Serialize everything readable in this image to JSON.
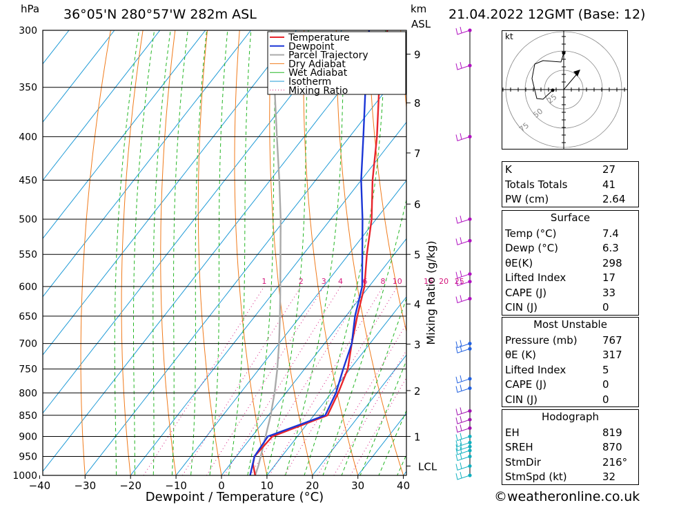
{
  "header": {
    "hpa_label": "hPa",
    "location": "36°05'N  280°57'W  282m  ASL",
    "km_label": "km",
    "asl_label": "ASL",
    "datetime": "21.04.2022  12GMT  (Base: 12)"
  },
  "chart_data": {
    "type": "skew-t",
    "xlabel": "Dewpoint / Temperature (°C)",
    "ylabel_right": "Mixing Ratio (g/kg)",
    "x_ticks": [
      -40,
      -30,
      -20,
      -10,
      0,
      10,
      20,
      30,
      40
    ],
    "pressure_levels": [
      300,
      350,
      400,
      450,
      500,
      550,
      600,
      650,
      700,
      750,
      800,
      850,
      900,
      950,
      1000
    ],
    "km_ticks": [
      {
        "label": "9",
        "p": 320
      },
      {
        "label": "8",
        "p": 365
      },
      {
        "label": "7",
        "p": 418
      },
      {
        "label": "6",
        "p": 480
      },
      {
        "label": "5",
        "p": 550
      },
      {
        "label": "4",
        "p": 629
      },
      {
        "label": "3",
        "p": 701
      },
      {
        "label": "2",
        "p": 795
      },
      {
        "label": "1",
        "p": 900
      },
      {
        "label": "LCL",
        "p": 975
      }
    ],
    "mixing_ratio_labels": [
      "1",
      "2",
      "3",
      "4",
      "6",
      "8",
      "10",
      "16",
      "20",
      "25"
    ],
    "mixing_ratio_values": [
      1,
      2,
      3,
      4,
      6,
      8,
      10,
      16,
      20,
      25
    ],
    "legend": [
      "Temperature",
      "Dewpoint",
      "Parcel Trajectory",
      "Dry Adiabat",
      "Wet Adiabat",
      "Isotherm",
      "Mixing Ratio"
    ],
    "colors": {
      "temperature": "#e8242b",
      "dewpoint": "#1a35d6",
      "parcel": "#aaaaaa",
      "dry_adiabat": "#f07a1a",
      "wet_adiabat": "#22b522",
      "isotherm": "#1e9ad6",
      "mixing_ratio": "#d4147a"
    },
    "temperature": [
      {
        "p": 1000,
        "t": 7.4
      },
      {
        "p": 970,
        "t": 5.0
      },
      {
        "p": 950,
        "t": 4.0
      },
      {
        "p": 900,
        "t": 4.5
      },
      {
        "p": 850,
        "t": 13.0
      },
      {
        "p": 800,
        "t": 11.5
      },
      {
        "p": 750,
        "t": 9.5
      },
      {
        "p": 700,
        "t": 6.0
      },
      {
        "p": 650,
        "t": 2.5
      },
      {
        "p": 600,
        "t": -1.0
      },
      {
        "p": 550,
        "t": -6.0
      },
      {
        "p": 500,
        "t": -11.0
      },
      {
        "p": 450,
        "t": -17.5
      },
      {
        "p": 400,
        "t": -24.0
      },
      {
        "p": 350,
        "t": -32.0
      },
      {
        "p": 300,
        "t": -40.0
      }
    ],
    "dewpoint": [
      {
        "p": 1000,
        "t": 6.3
      },
      {
        "p": 950,
        "t": 4.0
      },
      {
        "p": 900,
        "t": 3.5
      },
      {
        "p": 850,
        "t": 12.5
      },
      {
        "p": 800,
        "t": 11.0
      },
      {
        "p": 750,
        "t": 8.5
      },
      {
        "p": 700,
        "t": 6.0
      },
      {
        "p": 650,
        "t": 2.0
      },
      {
        "p": 600,
        "t": -1.5
      },
      {
        "p": 550,
        "t": -7.0
      },
      {
        "p": 500,
        "t": -13.0
      },
      {
        "p": 450,
        "t": -20.0
      },
      {
        "p": 400,
        "t": -27.0
      },
      {
        "p": 350,
        "t": -35.0
      },
      {
        "p": 300,
        "t": -44.0
      }
    ],
    "parcel": [
      {
        "p": 1000,
        "t": 7.4
      },
      {
        "p": 975,
        "t": 6.5
      },
      {
        "p": 900,
        "t": 3.0
      },
      {
        "p": 850,
        "t": 0.5
      },
      {
        "p": 800,
        "t": -2.5
      },
      {
        "p": 750,
        "t": -6.0
      },
      {
        "p": 700,
        "t": -10.0
      },
      {
        "p": 650,
        "t": -14.5
      },
      {
        "p": 600,
        "t": -19.5
      },
      {
        "p": 550,
        "t": -25.0
      },
      {
        "p": 500,
        "t": -31.0
      },
      {
        "p": 450,
        "t": -38.0
      },
      {
        "p": 400,
        "t": -46.0
      },
      {
        "p": 350,
        "t": -55.0
      },
      {
        "p": 320,
        "t": -61.0
      }
    ],
    "wind_levels": [
      300,
      330,
      400,
      500,
      530,
      580,
      592,
      620,
      700,
      710,
      770,
      790,
      840,
      860,
      880,
      900,
      915,
      925,
      935,
      950,
      975,
      1000
    ]
  },
  "hodograph": {
    "unit": "kt",
    "ring_labels": [
      "25",
      "50",
      "75"
    ]
  },
  "indices": {
    "general": [
      {
        "label": "K",
        "value": "27"
      },
      {
        "label": "Totals Totals",
        "value": "41"
      },
      {
        "label": "PW (cm)",
        "value": "2.64"
      }
    ],
    "surface": {
      "title": "Surface",
      "rows": [
        {
          "label": "Temp (°C)",
          "value": "7.4"
        },
        {
          "label": "Dewp (°C)",
          "value": "6.3"
        },
        {
          "label": "θE(K)",
          "value": "298"
        },
        {
          "label": "Lifted Index",
          "value": "17"
        },
        {
          "label": "CAPE (J)",
          "value": "33"
        },
        {
          "label": "CIN (J)",
          "value": "0"
        }
      ]
    },
    "most_unstable": {
      "title": "Most Unstable",
      "rows": [
        {
          "label": "Pressure (mb)",
          "value": "767"
        },
        {
          "label": "θE (K)",
          "value": "317"
        },
        {
          "label": "Lifted Index",
          "value": "5"
        },
        {
          "label": "CAPE (J)",
          "value": "0"
        },
        {
          "label": "CIN (J)",
          "value": "0"
        }
      ]
    },
    "hodograph": {
      "title": "Hodograph",
      "rows": [
        {
          "label": "EH",
          "value": "819"
        },
        {
          "label": "SREH",
          "value": "870"
        },
        {
          "label": "StmDir",
          "value": "216°"
        },
        {
          "label": "StmSpd (kt)",
          "value": "32"
        }
      ]
    }
  },
  "footer": {
    "credit": "©weatheronline.co.uk"
  }
}
